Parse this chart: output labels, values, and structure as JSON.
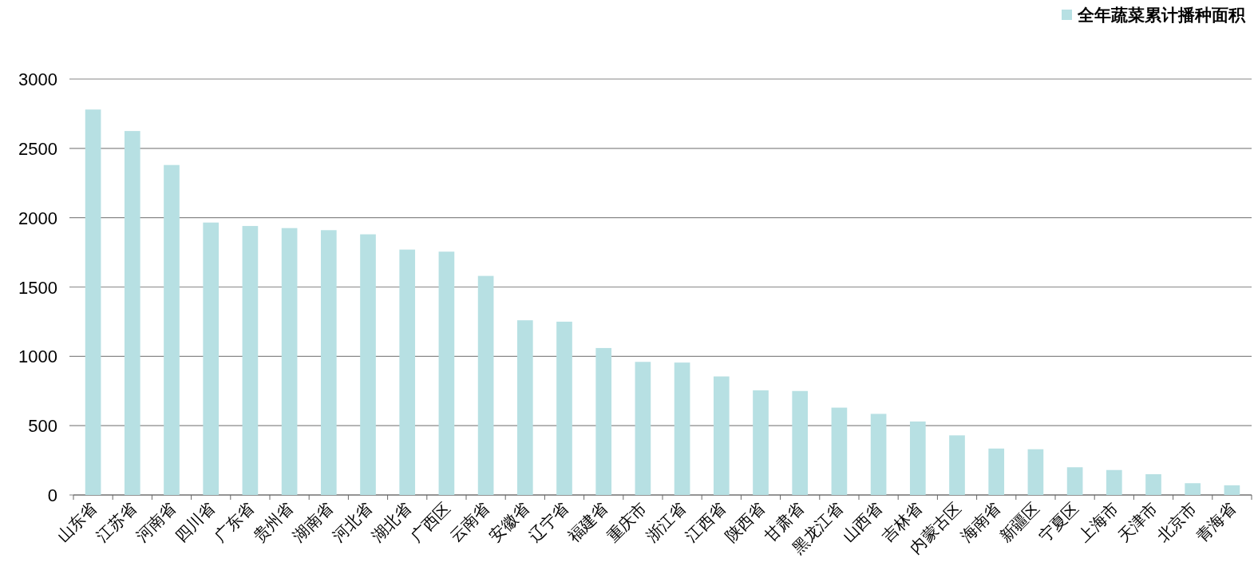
{
  "chart_data": {
    "type": "bar",
    "categories": [
      "山东省",
      "江苏省",
      "河南省",
      "四川省",
      "广东省",
      "贵州省",
      "湖南省",
      "河北省",
      "湖北省",
      "广西区",
      "云南省",
      "安徽省",
      "辽宁省",
      "福建省",
      "重庆市",
      "浙江省",
      "江西省",
      "陕西省",
      "甘肃省",
      "黑龙江省",
      "山西省",
      "吉林省",
      "内蒙古区",
      "海南省",
      "新疆区",
      "宁夏区",
      "上海市",
      "天津市",
      "北京市",
      "青海省"
    ],
    "series": [
      {
        "name": "全年蔬菜累计播种面积",
        "color": "#b7e0e3",
        "values": [
          2780,
          2625,
          2380,
          1965,
          1940,
          1925,
          1910,
          1880,
          1770,
          1755,
          1580,
          1260,
          1250,
          1060,
          960,
          955,
          855,
          755,
          750,
          630,
          585,
          530,
          430,
          335,
          330,
          200,
          180,
          150,
          85,
          70
        ]
      }
    ],
    "ylim": [
      0,
      3000
    ],
    "yticks": [
      0,
      500,
      1000,
      1500,
      2000,
      2500,
      3000
    ],
    "grid": "y",
    "legend": "top right"
  }
}
